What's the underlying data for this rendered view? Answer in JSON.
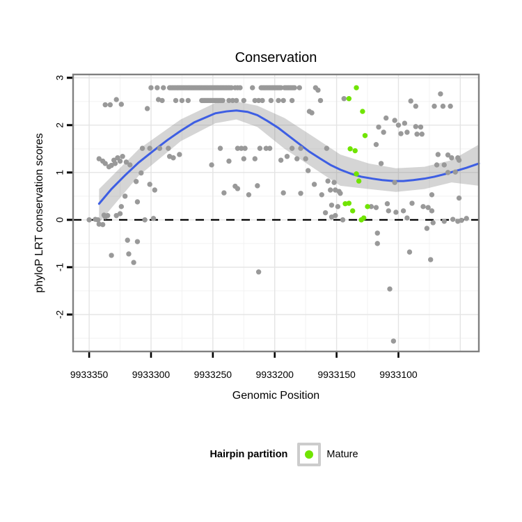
{
  "title": "Conservation",
  "axes": {
    "x": {
      "label": "Genomic Position",
      "ticks": [
        9933350,
        9933300,
        9933250,
        9933200,
        9933150,
        9933100
      ],
      "domain_left": 9933363,
      "domain_right": 9933035,
      "grid_major": [
        9933350,
        9933300,
        9933250,
        9933200,
        9933150,
        9933100,
        9933050
      ],
      "grid_minor": [
        9933325,
        9933275,
        9933225,
        9933175,
        9933125,
        9933075
      ]
    },
    "y": {
      "label": "phyloP LRT conservation scores",
      "ticks": [
        3,
        2,
        1,
        0,
        -1,
        -2
      ],
      "domain_top": 3.07,
      "domain_bottom": -2.78,
      "grid_major": [
        3,
        2,
        1,
        0,
        -1,
        -2
      ],
      "grid_minor": [
        2.5,
        1.5,
        0.5,
        -0.5,
        -1.5,
        -2.5
      ]
    }
  },
  "legend": {
    "title": "Hairpin partition",
    "items": [
      {
        "label": "Mature",
        "color": "#70E400"
      }
    ]
  },
  "colors": {
    "point_other": "#999999",
    "point_mature": "#70E400",
    "smooth_line": "#3D5EE3",
    "band": "rgba(127,127,127,0.33)",
    "zero_line": "#000000",
    "panel_border": "#808080",
    "grid_major": "#E4E4E4",
    "grid_minor": "#F2F2F2",
    "tick": "#000000"
  },
  "chart_data": {
    "type": "scatter",
    "title": "Conservation",
    "xlabel": "Genomic Position",
    "ylabel": "phyloP LRT conservation scores",
    "x_reversed": true,
    "zero_line_y": 0,
    "series": [
      {
        "name": "Other",
        "color": "#999999",
        "runs": [
          {
            "y": 2.79,
            "from": 9933285,
            "to": 9933235
          },
          {
            "y": 2.79,
            "from": 9933211,
            "to": 9933195
          },
          {
            "y": 2.79,
            "from": 9933192,
            "to": 9933184
          },
          {
            "y": 2.52,
            "from": 9933259,
            "to": 9933242
          }
        ],
        "points": [
          [
            9933300,
            2.79
          ],
          [
            9933295,
            2.79
          ],
          [
            9933290,
            2.79
          ],
          [
            9933232,
            2.79
          ],
          [
            9933230,
            2.79
          ],
          [
            9933228,
            2.79
          ],
          [
            9933218,
            2.79
          ],
          [
            9933180,
            2.79
          ],
          [
            9933167,
            2.79
          ],
          [
            9933165,
            2.74
          ],
          [
            9933337,
            2.43
          ],
          [
            9933333,
            2.43
          ],
          [
            9933328,
            2.54
          ],
          [
            9933324,
            2.44
          ],
          [
            9933303,
            2.35
          ],
          [
            9933294,
            2.54
          ],
          [
            9933291,
            2.52
          ],
          [
            9933280,
            2.52
          ],
          [
            9933275,
            2.52
          ],
          [
            9933270,
            2.52
          ],
          [
            9933237,
            2.52
          ],
          [
            9933234,
            2.52
          ],
          [
            9933231,
            2.52
          ],
          [
            9933225,
            2.52
          ],
          [
            9933216,
            2.52
          ],
          [
            9933213,
            2.52
          ],
          [
            9933210,
            2.52
          ],
          [
            9933203,
            2.52
          ],
          [
            9933197,
            2.52
          ],
          [
            9933193,
            2.52
          ],
          [
            9933186,
            2.52
          ],
          [
            9933172,
            2.29
          ],
          [
            9933170,
            2.26
          ],
          [
            9933163,
            2.52
          ],
          [
            9933144,
            2.56
          ],
          [
            9933307,
            1.51
          ],
          [
            9933301,
            1.51
          ],
          [
            9933293,
            1.51
          ],
          [
            9933286,
            1.51
          ],
          [
            9933244,
            1.51
          ],
          [
            9933230,
            1.51
          ],
          [
            9933227,
            1.51
          ],
          [
            9933224,
            1.51
          ],
          [
            9933212,
            1.51
          ],
          [
            9933207,
            1.51
          ],
          [
            9933204,
            1.51
          ],
          [
            9933186,
            1.51
          ],
          [
            9933179,
            1.51
          ],
          [
            9933158,
            1.51
          ],
          [
            9933342,
            1.29
          ],
          [
            9933339,
            1.24
          ],
          [
            9933337,
            1.19
          ],
          [
            9933334,
            1.12
          ],
          [
            9933332,
            1.15
          ],
          [
            9933330,
            1.26
          ],
          [
            9933329,
            1.19
          ],
          [
            9933327,
            1.31
          ],
          [
            9933325,
            1.24
          ],
          [
            9933323,
            1.34
          ],
          [
            9933320,
            1.22
          ],
          [
            9933317,
            1.16
          ],
          [
            9933285,
            1.34
          ],
          [
            9933282,
            1.31
          ],
          [
            9933277,
            1.38
          ],
          [
            9933251,
            1.16
          ],
          [
            9933237,
            1.24
          ],
          [
            9933225,
            1.29
          ],
          [
            9933216,
            1.29
          ],
          [
            9933195,
            1.26
          ],
          [
            9933190,
            1.34
          ],
          [
            9933182,
            1.29
          ],
          [
            9933175,
            1.29
          ],
          [
            9933308,
            0.99
          ],
          [
            9933312,
            0.81
          ],
          [
            9933321,
            0.5
          ],
          [
            9933311,
            0.38
          ],
          [
            9933301,
            0.75
          ],
          [
            9933297,
            0.63
          ],
          [
            9933241,
            0.57
          ],
          [
            9933232,
            0.71
          ],
          [
            9933230,
            0.66
          ],
          [
            9933221,
            0.53
          ],
          [
            9933214,
            0.72
          ],
          [
            9933193,
            0.57
          ],
          [
            9933179,
            0.56
          ],
          [
            9933173,
            1.04
          ],
          [
            9933168,
            0.75
          ],
          [
            9933162,
            0.53
          ],
          [
            9933157,
            0.82
          ],
          [
            9933155,
            0.63
          ],
          [
            9933152,
            0.79
          ],
          [
            9933151,
            0.63
          ],
          [
            9933148,
            0.6
          ],
          [
            9933147,
            0.56
          ],
          [
            9933350,
            0.0
          ],
          [
            9933345,
            0.01
          ],
          [
            9933343,
            0.0
          ],
          [
            9933342,
            -0.09
          ],
          [
            9933339,
            -0.1
          ],
          [
            9933338,
            0.1
          ],
          [
            9933337,
            0.06
          ],
          [
            9933335,
            0.09
          ],
          [
            9933328,
            0.09
          ],
          [
            9933325,
            0.13
          ],
          [
            9933324,
            0.28
          ],
          [
            9933305,
            0.0
          ],
          [
            9933298,
            0.03
          ],
          [
            9933332,
            -0.75
          ],
          [
            9933319,
            -0.43
          ],
          [
            9933318,
            -0.72
          ],
          [
            9933314,
            -0.9
          ],
          [
            9933311,
            -0.46
          ],
          [
            9933213,
            -1.1
          ],
          [
            9933159,
            0.15
          ],
          [
            9933154,
            0.31
          ],
          [
            9933154,
            0.06
          ],
          [
            9933151,
            0.09
          ],
          [
            9933149,
            0.28
          ],
          [
            9933145,
            0.0
          ],
          [
            9933122,
            0.28
          ],
          [
            9933118,
            0.26
          ],
          [
            9933109,
            0.34
          ],
          [
            9933108,
            0.19
          ],
          [
            9933102,
            0.16
          ],
          [
            9933096,
            0.19
          ],
          [
            9933093,
            0.04
          ],
          [
            9933089,
            0.35
          ],
          [
            9933080,
            0.28
          ],
          [
            9933076,
            0.26
          ],
          [
            9933073,
            0.19
          ],
          [
            9933077,
            -0.18
          ],
          [
            9933072,
            -0.06
          ],
          [
            9933063,
            -0.03
          ],
          [
            9933056,
            0.01
          ],
          [
            9933052,
            -0.03
          ],
          [
            9933049,
            -0.01
          ],
          [
            9933045,
            0.03
          ],
          [
            9933117,
            -0.28
          ],
          [
            9933117,
            -0.5
          ],
          [
            9933091,
            -0.68
          ],
          [
            9933074,
            -0.84
          ],
          [
            9933107,
            -1.46
          ],
          [
            9933104,
            -2.56
          ],
          [
            9933066,
            2.66
          ],
          [
            9933090,
            2.51
          ],
          [
            9933086,
            2.4
          ],
          [
            9933071,
            2.4
          ],
          [
            9933064,
            2.4
          ],
          [
            9933058,
            2.4
          ],
          [
            9933110,
            2.15
          ],
          [
            9933103,
            2.1
          ],
          [
            9933100,
            2.0
          ],
          [
            9933095,
            2.04
          ],
          [
            9933116,
            1.96
          ],
          [
            9933112,
            1.85
          ],
          [
            9933098,
            1.82
          ],
          [
            9933093,
            1.85
          ],
          [
            9933086,
            1.97
          ],
          [
            9933082,
            1.96
          ],
          [
            9933085,
            1.81
          ],
          [
            9933081,
            1.81
          ],
          [
            9933118,
            1.59
          ],
          [
            9933114,
            1.19
          ],
          [
            9933068,
            1.38
          ],
          [
            9933060,
            1.37
          ],
          [
            9933057,
            1.31
          ],
          [
            9933052,
            1.31
          ],
          [
            9933069,
            1.16
          ],
          [
            9933063,
            1.16
          ],
          [
            9933051,
            1.26
          ],
          [
            9933060,
            1.0
          ],
          [
            9933054,
            1.01
          ],
          [
            9933103,
            0.79
          ],
          [
            9933073,
            0.53
          ],
          [
            9933051,
            0.46
          ]
        ]
      },
      {
        "name": "Mature",
        "color": "#70E400",
        "points": [
          [
            9933134,
            2.79
          ],
          [
            9933140,
            2.56
          ],
          [
            9933129,
            2.29
          ],
          [
            9933127,
            1.78
          ],
          [
            9933139,
            1.5
          ],
          [
            9933135,
            1.46
          ],
          [
            9933134,
            0.97
          ],
          [
            9933132,
            0.82
          ],
          [
            9933143,
            0.34
          ],
          [
            9933140,
            0.35
          ],
          [
            9933137,
            0.19
          ],
          [
            9933125,
            0.28
          ],
          [
            9933130,
            0.0
          ],
          [
            9933128,
            0.04
          ]
        ]
      }
    ],
    "smooth": {
      "name": "loess-fit",
      "color": "#3D5EE3",
      "line": [
        [
          9933342,
          0.34
        ],
        [
          9933332,
          0.65
        ],
        [
          9933321,
          0.94
        ],
        [
          9933310,
          1.21
        ],
        [
          9933298,
          1.46
        ],
        [
          9933287,
          1.68
        ],
        [
          9933276,
          1.88
        ],
        [
          9933265,
          2.06
        ],
        [
          9933256,
          2.16
        ],
        [
          9933248,
          2.25
        ],
        [
          9933239,
          2.29
        ],
        [
          9933231,
          2.31
        ],
        [
          9933222,
          2.28
        ],
        [
          9933214,
          2.21
        ],
        [
          9933206,
          2.09
        ],
        [
          9933197,
          1.94
        ],
        [
          9933189,
          1.78
        ],
        [
          9933180,
          1.6
        ],
        [
          9933172,
          1.44
        ],
        [
          9933163,
          1.29
        ],
        [
          9933155,
          1.16
        ],
        [
          9933147,
          1.06
        ],
        [
          9933138,
          0.97
        ],
        [
          9933130,
          0.91
        ],
        [
          9933121,
          0.87
        ],
        [
          9933113,
          0.84
        ],
        [
          9933104,
          0.82
        ],
        [
          9933096,
          0.82
        ],
        [
          9933088,
          0.84
        ],
        [
          9933079,
          0.87
        ],
        [
          9933071,
          0.91
        ],
        [
          9933062,
          0.97
        ],
        [
          9933054,
          1.03
        ],
        [
          9933045,
          1.1
        ],
        [
          9933035,
          1.19
        ]
      ],
      "band_upper": [
        [
          9933342,
          0.65
        ],
        [
          9933310,
          1.49
        ],
        [
          9933276,
          2.12
        ],
        [
          9933248,
          2.47
        ],
        [
          9933231,
          2.5
        ],
        [
          9933214,
          2.41
        ],
        [
          9933192,
          2.15
        ],
        [
          9933169,
          1.76
        ],
        [
          9933147,
          1.38
        ],
        [
          9933124,
          1.19
        ],
        [
          9933102,
          1.09
        ],
        [
          9933079,
          1.12
        ],
        [
          9933057,
          1.26
        ],
        [
          9933035,
          1.59
        ]
      ],
      "band_lower": [
        [
          9933342,
          -0.06
        ],
        [
          9933310,
          0.93
        ],
        [
          9933276,
          1.66
        ],
        [
          9933248,
          2.04
        ],
        [
          9933231,
          2.12
        ],
        [
          9933214,
          1.96
        ],
        [
          9933192,
          1.5
        ],
        [
          9933169,
          1.1
        ],
        [
          9933147,
          0.72
        ],
        [
          9933124,
          0.65
        ],
        [
          9933102,
          0.59
        ],
        [
          9933079,
          0.65
        ],
        [
          9933057,
          0.79
        ],
        [
          9933035,
          0.72
        ]
      ]
    }
  }
}
